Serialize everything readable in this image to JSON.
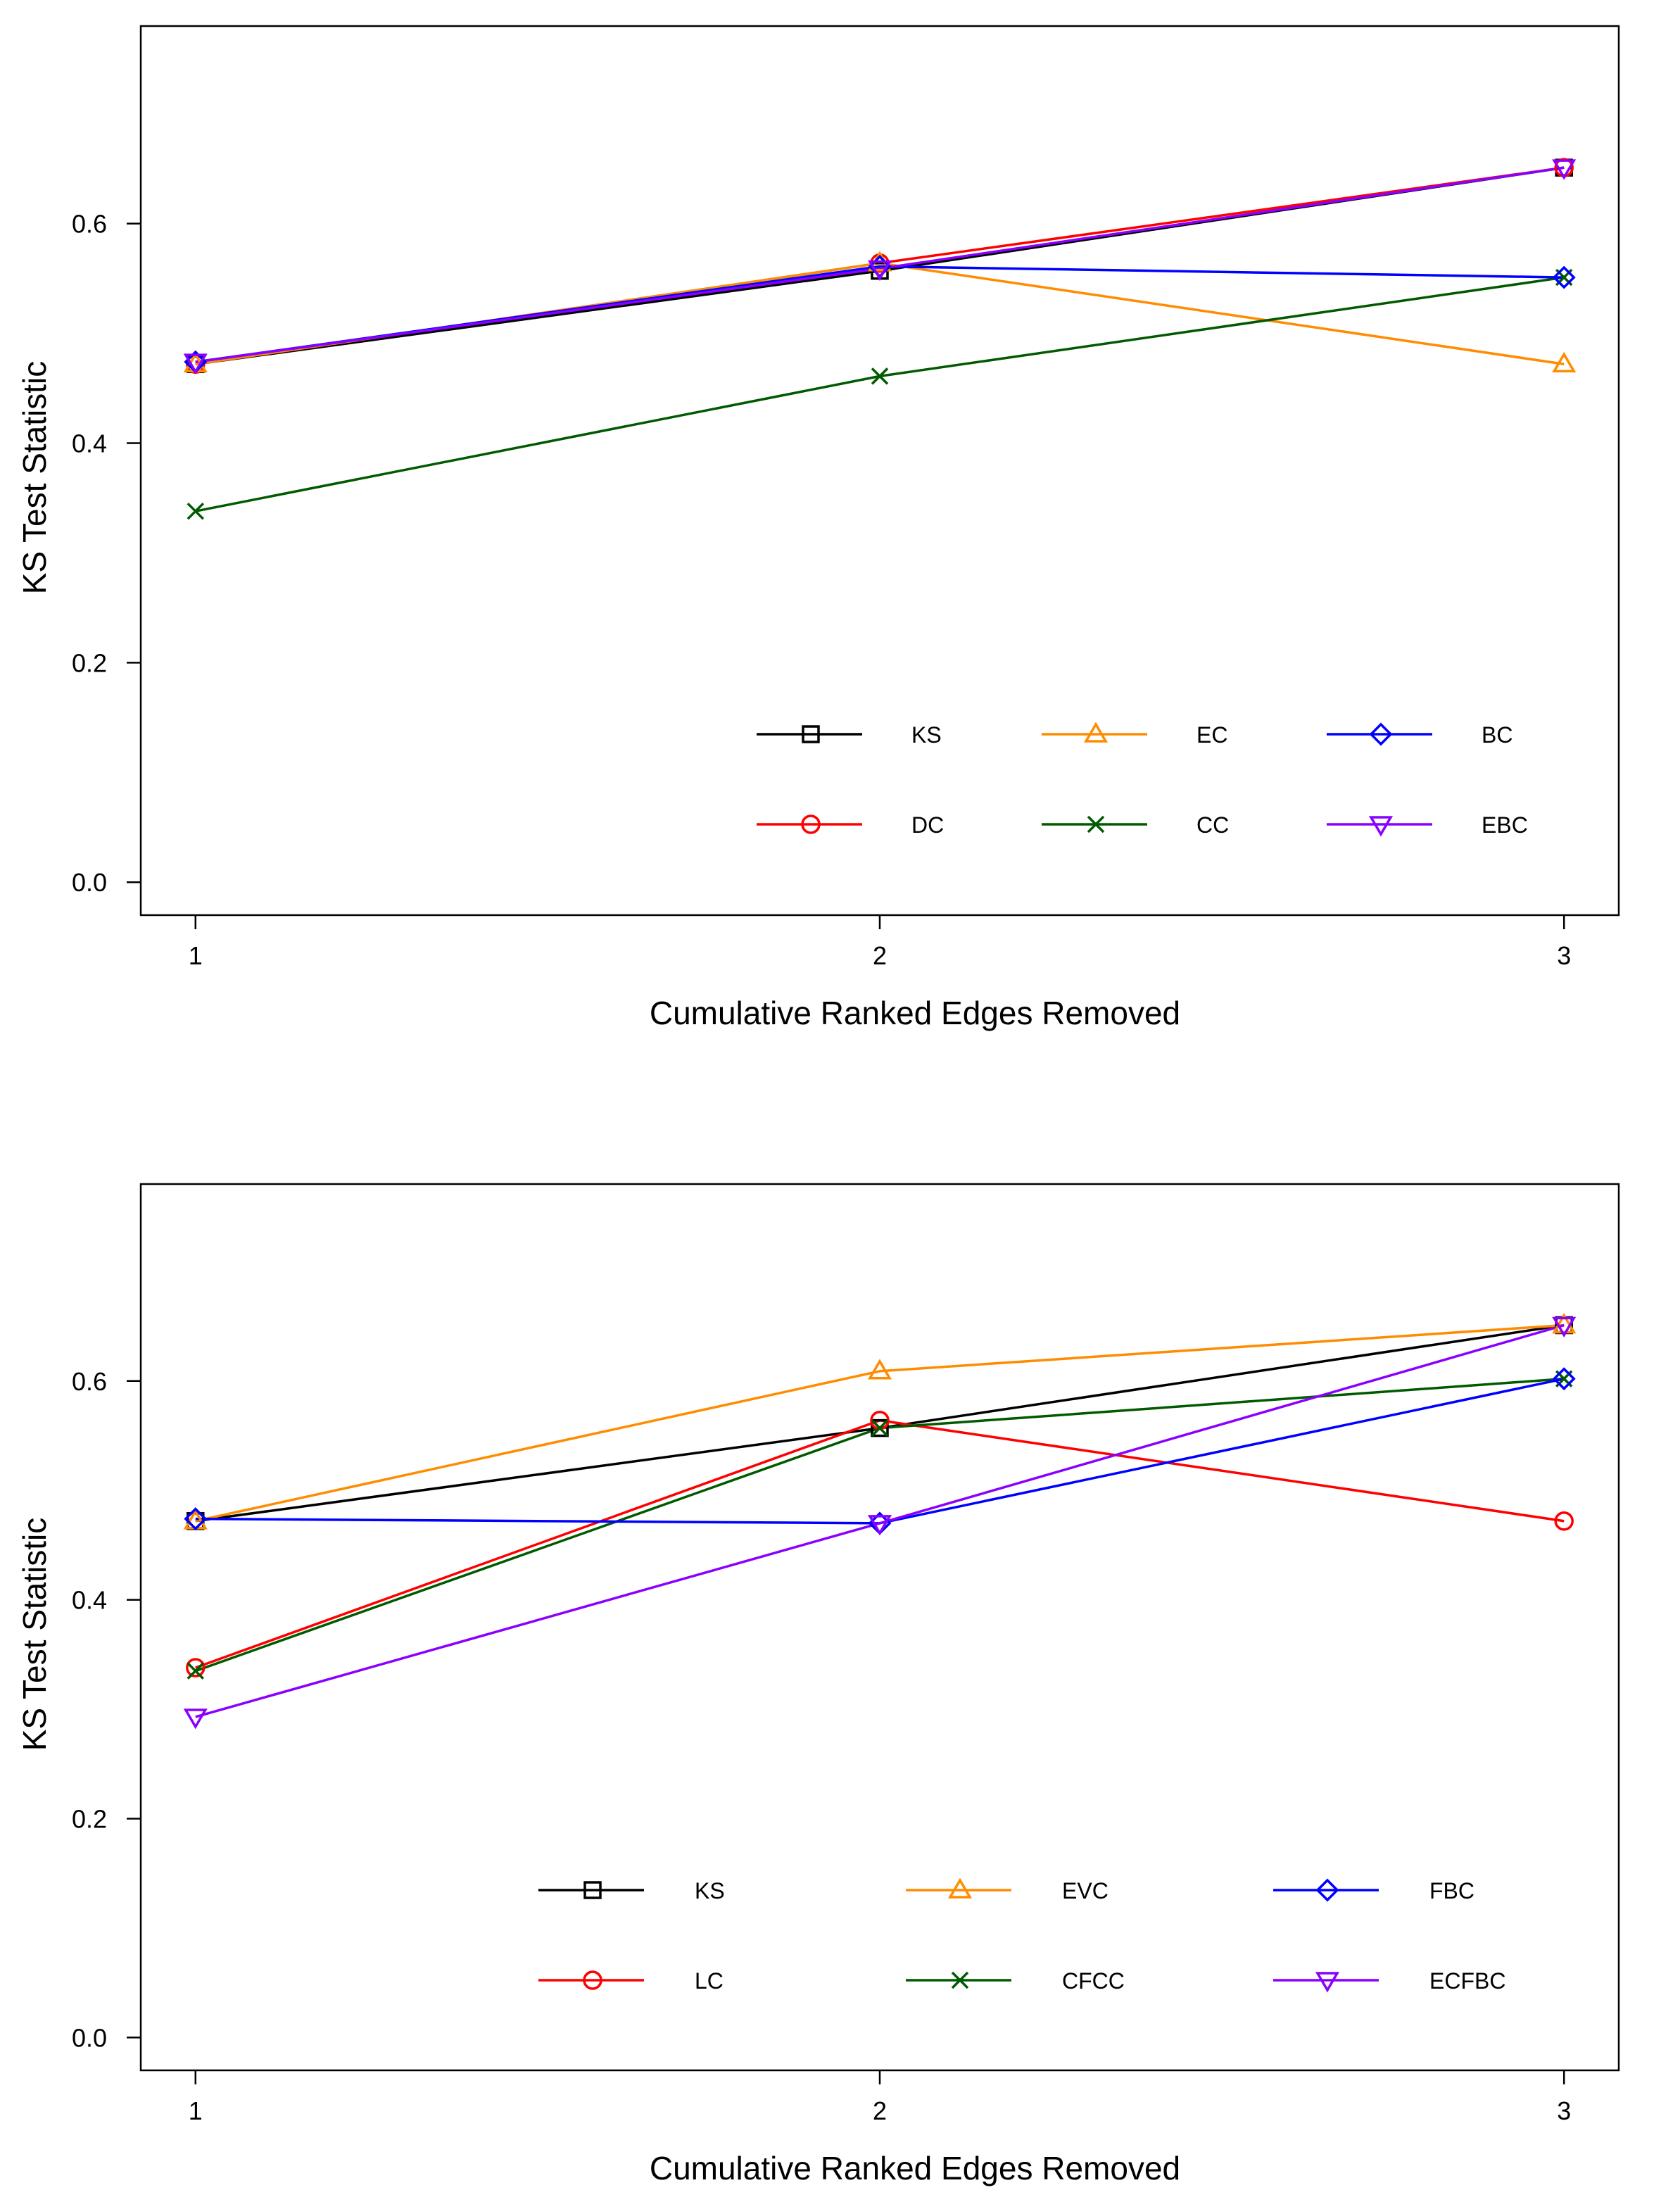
{
  "chart_data": [
    {
      "type": "line",
      "xlabel": "Cumulative Ranked Edges Removed",
      "ylabel": "KS Test Statistic",
      "x": [
        1,
        2,
        3
      ],
      "x_ticks": [
        1,
        2,
        3
      ],
      "y_ticks": [
        0.0,
        0.2,
        0.4,
        0.6
      ],
      "y_tick_labels": [
        "0.0",
        "0.2",
        "0.4",
        "0.6"
      ],
      "xlim": [
        0.92,
        3.08
      ],
      "ylim": [
        -0.03,
        0.78
      ],
      "grid": false,
      "legend_position": "bottom-right",
      "legend_columns": 3,
      "series": [
        {
          "name": "KS",
          "color": "#000000",
          "marker": "square",
          "values": [
            0.472,
            0.557,
            0.651
          ]
        },
        {
          "name": "DC",
          "color": "#ff0000",
          "marker": "circle",
          "values": [
            0.472,
            0.564,
            0.651
          ]
        },
        {
          "name": "EC",
          "color": "#ff8c00",
          "marker": "triangle-up",
          "values": [
            0.472,
            0.564,
            0.472
          ]
        },
        {
          "name": "CC",
          "color": "#005a00",
          "marker": "x",
          "values": [
            0.338,
            0.461,
            0.551
          ]
        },
        {
          "name": "BC",
          "color": "#0000ff",
          "marker": "diamond",
          "values": [
            0.474,
            0.561,
            0.551
          ]
        },
        {
          "name": "EBC",
          "color": "#8a00ff",
          "marker": "triangle-down",
          "values": [
            0.474,
            0.559,
            0.651
          ]
        }
      ]
    },
    {
      "type": "line",
      "xlabel": "Cumulative Ranked Edges Removed",
      "ylabel": "KS Test Statistic",
      "x": [
        1,
        2,
        3
      ],
      "x_ticks": [
        1,
        2,
        3
      ],
      "y_ticks": [
        0.0,
        0.2,
        0.4,
        0.6
      ],
      "y_tick_labels": [
        "0.0",
        "0.2",
        "0.4",
        "0.6"
      ],
      "xlim": [
        0.92,
        3.08
      ],
      "ylim": [
        -0.03,
        0.78
      ],
      "grid": false,
      "legend_position": "bottom-center",
      "legend_columns": 3,
      "series": [
        {
          "name": "KS",
          "color": "#000000",
          "marker": "square",
          "values": [
            0.472,
            0.557,
            0.651
          ]
        },
        {
          "name": "LC",
          "color": "#ff0000",
          "marker": "circle",
          "values": [
            0.338,
            0.564,
            0.472
          ]
        },
        {
          "name": "EVC",
          "color": "#ff8c00",
          "marker": "triangle-up",
          "values": [
            0.472,
            0.609,
            0.651
          ]
        },
        {
          "name": "CFCC",
          "color": "#005a00",
          "marker": "x",
          "values": [
            0.335,
            0.557,
            0.602
          ]
        },
        {
          "name": "FBC",
          "color": "#0000ff",
          "marker": "diamond",
          "values": [
            0.474,
            0.47,
            0.602
          ]
        },
        {
          "name": "ECFBC",
          "color": "#8a00ff",
          "marker": "triangle-down",
          "values": [
            0.293,
            0.47,
            0.651
          ]
        }
      ]
    }
  ]
}
